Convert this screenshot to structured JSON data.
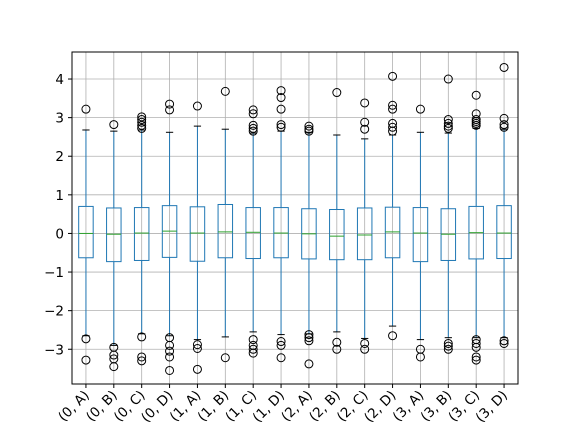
{
  "chart_data": {
    "type": "box",
    "title": "",
    "xlabel": "",
    "ylabel": "",
    "ylim": [
      -3.9,
      4.7
    ],
    "yticks": [
      4,
      3,
      2,
      1,
      0,
      -1,
      -2,
      -3
    ],
    "ytick_labels": [
      "4",
      "3",
      "2",
      "1",
      "0",
      "−1",
      "−2",
      "−3"
    ],
    "grid": true,
    "colors": {
      "box": "#1f77b4",
      "median": "#2ca02c",
      "grid": "#b0b0b0",
      "axis": "#000000"
    },
    "categories": [
      "(0, A)",
      "(0, B)",
      "(0, C)",
      "(0, D)",
      "(1, A)",
      "(1, B)",
      "(1, C)",
      "(1, D)",
      "(2, A)",
      "(2, B)",
      "(2, C)",
      "(2, D)",
      "(3, A)",
      "(3, B)",
      "(3, C)",
      "(3, D)"
    ],
    "boxes": [
      {
        "q1": -0.63,
        "median": 0.0,
        "q3": 0.7,
        "whislo": -2.65,
        "whishi": 2.68,
        "fliers": [
          3.22,
          -2.73,
          -3.28
        ]
      },
      {
        "q1": -0.73,
        "median": -0.02,
        "q3": 0.66,
        "whislo": -2.9,
        "whishi": 2.65,
        "fliers": [
          2.82,
          -2.95,
          -3.15,
          -3.25,
          -3.45
        ]
      },
      {
        "q1": -0.7,
        "median": 0.01,
        "q3": 0.67,
        "whislo": -2.6,
        "whishi": 2.68,
        "fliers": [
          3.02,
          2.95,
          2.88,
          2.8,
          2.72,
          -2.68,
          -3.2,
          -3.3
        ]
      },
      {
        "q1": -0.62,
        "median": 0.06,
        "q3": 0.72,
        "whislo": -2.65,
        "whishi": 2.62,
        "fliers": [
          3.35,
          3.2,
          -2.7,
          -2.9,
          -3.05,
          -3.2,
          -3.55
        ]
      },
      {
        "q1": -0.72,
        "median": 0.01,
        "q3": 0.69,
        "whislo": -2.75,
        "whishi": 2.78,
        "fliers": [
          3.3,
          -2.88,
          -2.98,
          -3.52
        ]
      },
      {
        "q1": -0.63,
        "median": 0.04,
        "q3": 0.75,
        "whislo": -2.68,
        "whishi": 2.7,
        "fliers": [
          3.68,
          -3.22
        ]
      },
      {
        "q1": -0.65,
        "median": 0.03,
        "q3": 0.67,
        "whislo": -2.55,
        "whishi": 2.6,
        "fliers": [
          3.2,
          3.1,
          2.8,
          2.72,
          2.65,
          -2.75,
          -2.9,
          -3.0,
          -3.1
        ]
      },
      {
        "q1": -0.63,
        "median": 0.01,
        "q3": 0.67,
        "whislo": -2.62,
        "whishi": 2.65,
        "fliers": [
          3.7,
          3.52,
          3.22,
          2.82,
          2.75,
          -2.8,
          -2.9,
          -3.22
        ]
      },
      {
        "q1": -0.66,
        "median": -0.01,
        "q3": 0.64,
        "whislo": -2.6,
        "whishi": 2.62,
        "fliers": [
          2.78,
          2.7,
          2.65,
          -2.62,
          -2.7,
          -2.78,
          -3.38
        ]
      },
      {
        "q1": -0.68,
        "median": -0.07,
        "q3": 0.62,
        "whislo": -2.55,
        "whishi": 2.55,
        "fliers": [
          3.65,
          -2.82,
          -3.0
        ]
      },
      {
        "q1": -0.68,
        "median": -0.04,
        "q3": 0.66,
        "whislo": -2.72,
        "whishi": 2.45,
        "fliers": [
          3.38,
          2.88,
          2.7,
          -2.85,
          -3.0
        ]
      },
      {
        "q1": -0.63,
        "median": 0.04,
        "q3": 0.68,
        "whislo": -2.4,
        "whishi": 2.55,
        "fliers": [
          4.07,
          3.32,
          3.22,
          2.85,
          2.75,
          2.65,
          -2.65
        ]
      },
      {
        "q1": -0.73,
        "median": 0.01,
        "q3": 0.67,
        "whislo": -2.75,
        "whishi": 2.62,
        "fliers": [
          3.22,
          -3.0,
          -3.2
        ]
      },
      {
        "q1": -0.7,
        "median": -0.02,
        "q3": 0.64,
        "whislo": -2.7,
        "whishi": 2.6,
        "fliers": [
          4.0,
          2.95,
          2.85,
          2.78,
          2.72,
          -2.85,
          -2.92,
          -3.0
        ]
      },
      {
        "q1": -0.66,
        "median": 0.02,
        "q3": 0.7,
        "whislo": -2.7,
        "whishi": 2.72,
        "fliers": [
          3.58,
          3.1,
          2.95,
          2.9,
          2.85,
          2.8,
          -2.75,
          -2.85,
          -2.95,
          -3.2,
          -3.28
        ]
      },
      {
        "q1": -0.65,
        "median": 0.01,
        "q3": 0.72,
        "whislo": -2.7,
        "whishi": 2.7,
        "fliers": [
          4.3,
          2.98,
          2.82,
          2.75,
          -2.78,
          -2.85
        ]
      }
    ]
  }
}
